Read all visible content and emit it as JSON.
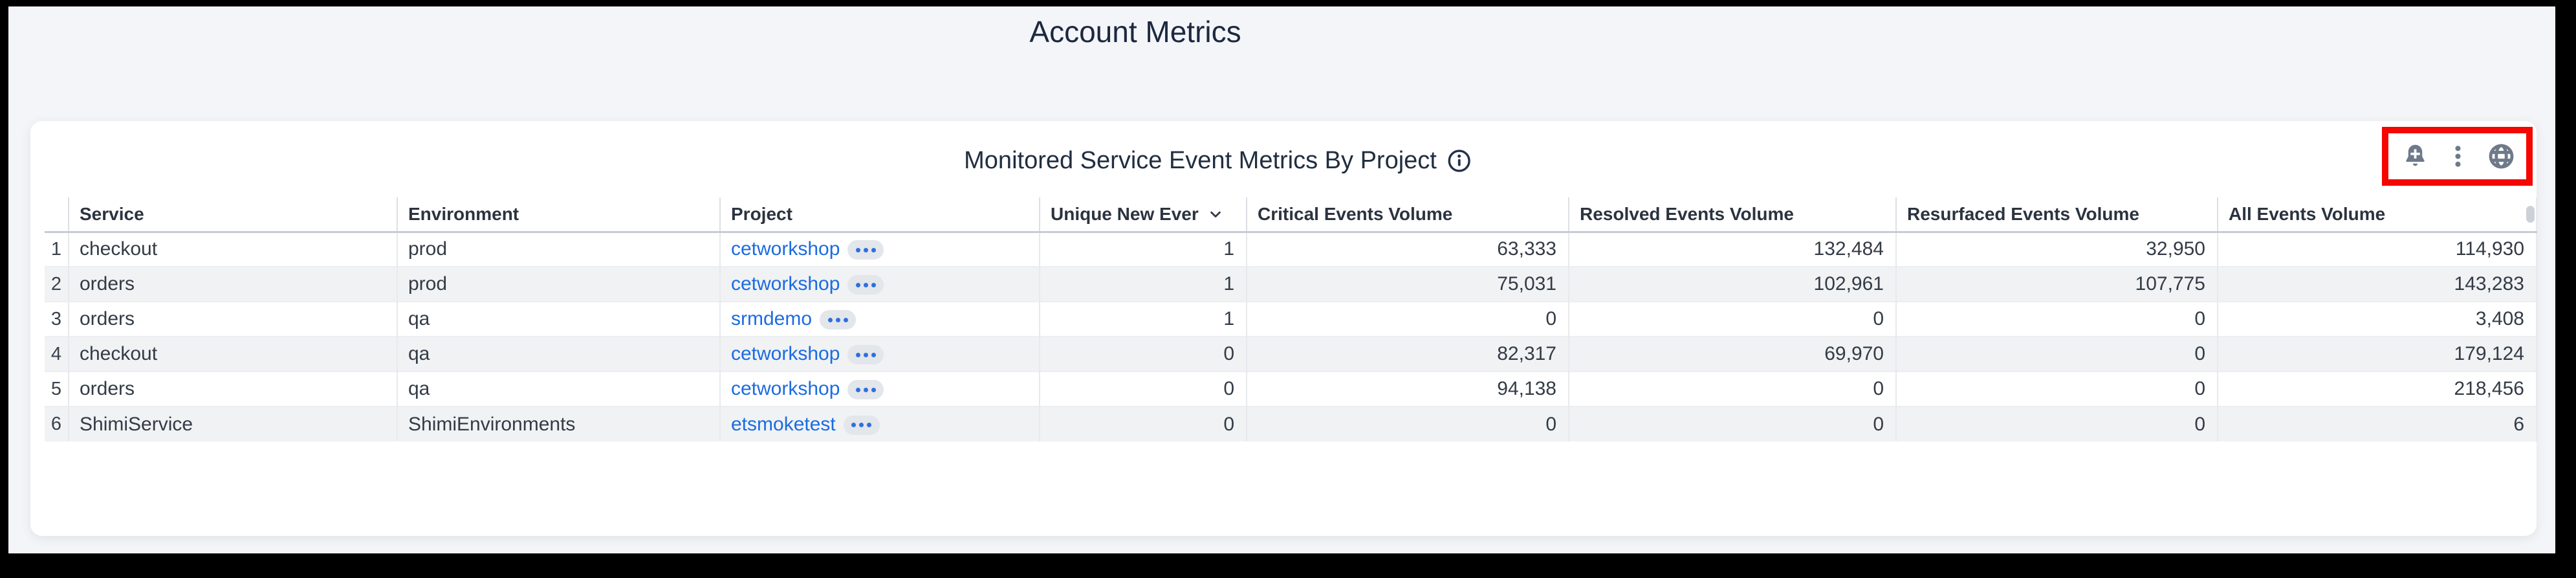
{
  "page": {
    "title": "Account Metrics"
  },
  "panel": {
    "title": "Monitored Service Event Metrics By Project",
    "info_icon": "info-icon",
    "toolbar": {
      "icons": [
        "bell-plus-icon",
        "kebab-menu-icon",
        "globe-icon"
      ],
      "icon_color": "#6e7a8a"
    },
    "annotation_highlight_color": "#f50600"
  },
  "table": {
    "columns": [
      {
        "label": "Service",
        "align": "left"
      },
      {
        "label": "Environment",
        "align": "left"
      },
      {
        "label": "Project",
        "align": "left"
      },
      {
        "label": "Unique New Ever",
        "align": "left",
        "sort": "desc"
      },
      {
        "label": "Critical Events Volume",
        "align": "left"
      },
      {
        "label": "Resolved Events Volume",
        "align": "left"
      },
      {
        "label": "Resurfaced Events Volume",
        "align": "left"
      },
      {
        "label": "All Events Volume",
        "align": "left"
      }
    ],
    "rows": [
      {
        "num": "1",
        "service": "checkout",
        "environment": "prod",
        "project": "cetworkshop",
        "unique_new_events": "1",
        "critical_events_volume": "63,333",
        "resolved_events_volume": "132,484",
        "resurfaced_events_volume": "32,950",
        "all_events_volume": "114,930"
      },
      {
        "num": "2",
        "service": "orders",
        "environment": "prod",
        "project": "cetworkshop",
        "unique_new_events": "1",
        "critical_events_volume": "75,031",
        "resolved_events_volume": "102,961",
        "resurfaced_events_volume": "107,775",
        "all_events_volume": "143,283"
      },
      {
        "num": "3",
        "service": "orders",
        "environment": "qa",
        "project": "srmdemo",
        "unique_new_events": "1",
        "critical_events_volume": "0",
        "resolved_events_volume": "0",
        "resurfaced_events_volume": "0",
        "all_events_volume": "3,408"
      },
      {
        "num": "4",
        "service": "checkout",
        "environment": "qa",
        "project": "cetworkshop",
        "unique_new_events": "0",
        "critical_events_volume": "82,317",
        "resolved_events_volume": "69,970",
        "resurfaced_events_volume": "0",
        "all_events_volume": "179,124"
      },
      {
        "num": "5",
        "service": "orders",
        "environment": "qa",
        "project": "cetworkshop",
        "unique_new_events": "0",
        "critical_events_volume": "94,138",
        "resolved_events_volume": "0",
        "resurfaced_events_volume": "0",
        "all_events_volume": "218,456"
      },
      {
        "num": "6",
        "service": "ShimiService",
        "environment": "ShimiEnvironments",
        "project": "etsmoketest",
        "unique_new_events": "0",
        "critical_events_volume": "0",
        "resolved_events_volume": "0",
        "resurfaced_events_volume": "0",
        "all_events_volume": "6"
      }
    ]
  },
  "colors": {
    "link_blue": "#1b6ce0",
    "page_background": "#f4f5f8",
    "card_background": "#ffffff",
    "header_text": "#2b333f",
    "body_text": "#333b46"
  }
}
